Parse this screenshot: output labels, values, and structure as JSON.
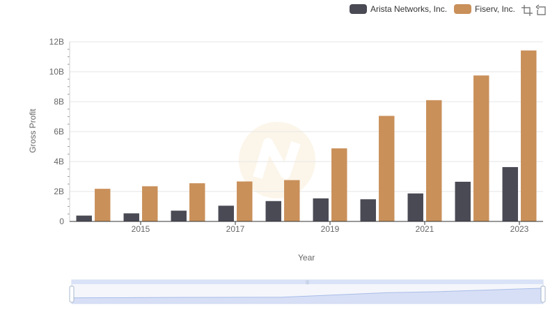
{
  "legend": {
    "items": [
      {
        "label": "Arista Networks, Inc.",
        "color": "#4a4a55"
      },
      {
        "label": "Fiserv, Inc.",
        "color": "#c9905a"
      }
    ]
  },
  "toolbox": {
    "icons": [
      "zoom-icon",
      "restore-icon"
    ]
  },
  "chart_data": {
    "type": "bar",
    "xlabel": "Year",
    "ylabel": "Gross Profit",
    "categories": [
      "2014",
      "2015",
      "2016",
      "2017",
      "2018",
      "2019",
      "2020",
      "2021",
      "2022",
      "2023"
    ],
    "x_tick_labels": [
      "2015",
      "2017",
      "2019",
      "2021",
      "2023"
    ],
    "y_tick_labels": [
      "0",
      "2B",
      "4B",
      "6B",
      "8B",
      "10B",
      "12B"
    ],
    "ylim": [
      0,
      12000000000
    ],
    "grid": true,
    "legend_position": "top-right",
    "series": [
      {
        "name": "Arista Networks, Inc.",
        "color": "#4a4a55",
        "values": [
          390000000,
          540000000,
          720000000,
          1050000000,
          1360000000,
          1540000000,
          1480000000,
          1870000000,
          2650000000,
          3630000000
        ]
      },
      {
        "name": "Fiserv, Inc.",
        "color": "#c9905a",
        "values": [
          2180000000,
          2350000000,
          2550000000,
          2670000000,
          2760000000,
          4880000000,
          7050000000,
          8100000000,
          9750000000,
          11420000000
        ]
      }
    ]
  },
  "datazoom": {
    "start_percent": 0,
    "end_percent": 100
  }
}
